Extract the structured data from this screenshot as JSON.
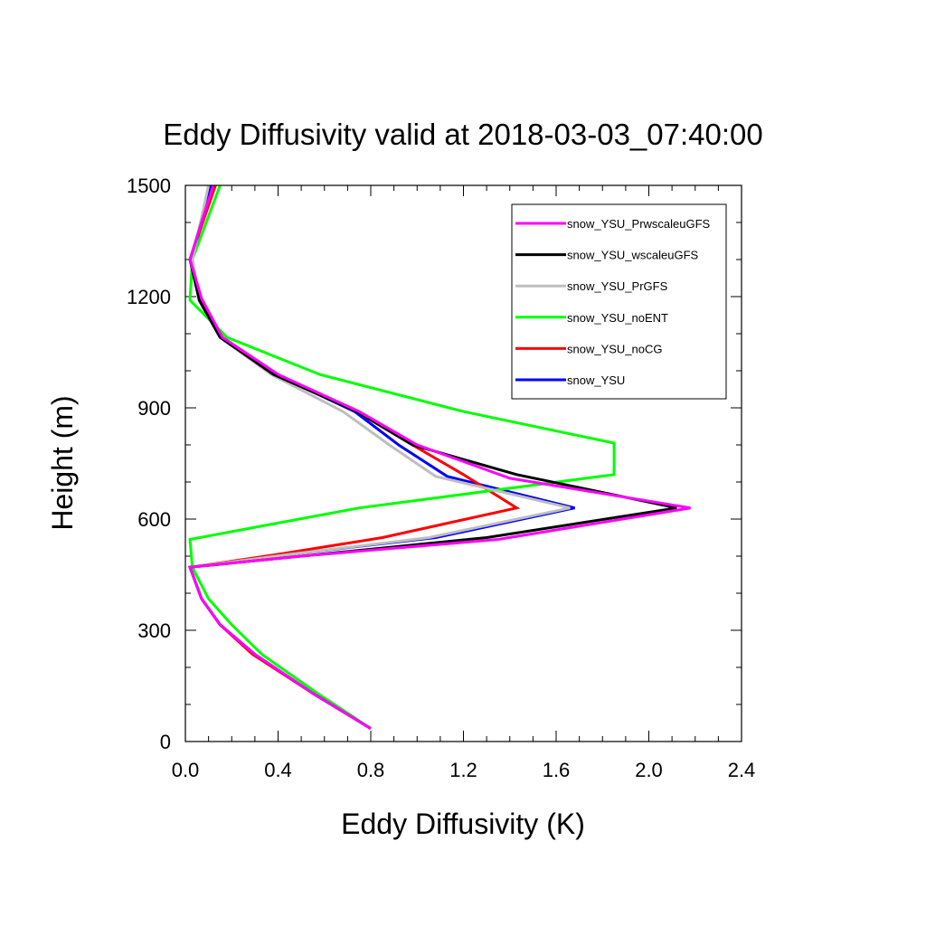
{
  "chart_data": {
    "type": "line",
    "title": "Eddy Diffusivity valid at 2018-03-03_07:40:00",
    "xlabel": "Eddy Diffusivity (K)",
    "ylabel": "Height (m)",
    "xlim": [
      0.0,
      2.4
    ],
    "ylim": [
      0,
      1500
    ],
    "xticks": [
      "0.0",
      "0.4",
      "0.8",
      "1.2",
      "1.6",
      "2.0",
      "2.4"
    ],
    "yticks": [
      "0",
      "300",
      "600",
      "900",
      "1200",
      "1500"
    ],
    "legend_position": "top-right",
    "series": [
      {
        "name": "snow_YSU_PrwscaleuGFS",
        "color": "#ff00ff",
        "points": [
          [
            0.8,
            35
          ],
          [
            0.55,
            130
          ],
          [
            0.3,
            235
          ],
          [
            0.15,
            315
          ],
          [
            0.07,
            385
          ],
          [
            0.02,
            470
          ],
          [
            0.5,
            500
          ],
          [
            1.35,
            545
          ],
          [
            2.18,
            630
          ],
          [
            1.4,
            710
          ],
          [
            1.0,
            800
          ],
          [
            0.75,
            890
          ],
          [
            0.4,
            990
          ],
          [
            0.16,
            1090
          ],
          [
            0.07,
            1195
          ],
          [
            0.02,
            1300
          ],
          [
            0.12,
            1500
          ]
        ]
      },
      {
        "name": "snow_YSU_wscaleuGFS",
        "color": "#000000",
        "points": [
          [
            0.8,
            35
          ],
          [
            0.55,
            130
          ],
          [
            0.3,
            235
          ],
          [
            0.15,
            315
          ],
          [
            0.07,
            385
          ],
          [
            0.02,
            470
          ],
          [
            0.5,
            500
          ],
          [
            1.3,
            550
          ],
          [
            2.12,
            630
          ],
          [
            1.43,
            720
          ],
          [
            0.98,
            800
          ],
          [
            0.74,
            890
          ],
          [
            0.38,
            990
          ],
          [
            0.15,
            1090
          ],
          [
            0.06,
            1190
          ],
          [
            0.02,
            1300
          ],
          [
            0.12,
            1500
          ]
        ]
      },
      {
        "name": "snow_YSU_PrGFS",
        "color": "#bebebe",
        "points": [
          [
            0.8,
            35
          ],
          [
            0.55,
            130
          ],
          [
            0.3,
            235
          ],
          [
            0.15,
            315
          ],
          [
            0.07,
            385
          ],
          [
            0.02,
            470
          ],
          [
            0.45,
            505
          ],
          [
            1.05,
            550
          ],
          [
            1.66,
            630
          ],
          [
            1.08,
            715
          ],
          [
            0.88,
            800
          ],
          [
            0.68,
            890
          ],
          [
            0.37,
            990
          ],
          [
            0.15,
            1090
          ],
          [
            0.06,
            1190
          ],
          [
            0.03,
            1300
          ],
          [
            0.1,
            1500
          ]
        ]
      },
      {
        "name": "snow_YSU_noENT",
        "color": "#00ff00",
        "points": [
          [
            0.8,
            35
          ],
          [
            0.57,
            130
          ],
          [
            0.33,
            235
          ],
          [
            0.2,
            315
          ],
          [
            0.1,
            385
          ],
          [
            0.03,
            470
          ],
          [
            0.02,
            545
          ],
          [
            0.75,
            630
          ],
          [
            1.85,
            720
          ],
          [
            1.85,
            805
          ],
          [
            1.2,
            890
          ],
          [
            0.58,
            990
          ],
          [
            0.18,
            1090
          ],
          [
            0.02,
            1190
          ],
          [
            0.03,
            1300
          ],
          [
            0.15,
            1500
          ]
        ]
      },
      {
        "name": "snow_YSU_noCG",
        "color": "#ff0000",
        "points": [
          [
            0.8,
            35
          ],
          [
            0.55,
            130
          ],
          [
            0.29,
            235
          ],
          [
            0.15,
            315
          ],
          [
            0.07,
            385
          ],
          [
            0.02,
            470
          ],
          [
            0.4,
            505
          ],
          [
            0.85,
            550
          ],
          [
            1.43,
            630
          ],
          [
            1.2,
            720
          ],
          [
            0.98,
            800
          ],
          [
            0.74,
            890
          ],
          [
            0.4,
            990
          ],
          [
            0.16,
            1090
          ],
          [
            0.07,
            1190
          ],
          [
            0.02,
            1300
          ],
          [
            0.13,
            1500
          ]
        ]
      },
      {
        "name": "snow_YSU",
        "color": "#0000ff",
        "points": [
          [
            0.8,
            35
          ],
          [
            0.55,
            130
          ],
          [
            0.3,
            235
          ],
          [
            0.15,
            315
          ],
          [
            0.07,
            385
          ],
          [
            0.02,
            470
          ],
          [
            0.45,
            505
          ],
          [
            1.08,
            550
          ],
          [
            1.68,
            630
          ],
          [
            1.13,
            715
          ],
          [
            0.92,
            800
          ],
          [
            0.73,
            890
          ],
          [
            0.39,
            990
          ],
          [
            0.15,
            1090
          ],
          [
            0.06,
            1190
          ],
          [
            0.03,
            1300
          ],
          [
            0.11,
            1500
          ]
        ]
      }
    ]
  }
}
